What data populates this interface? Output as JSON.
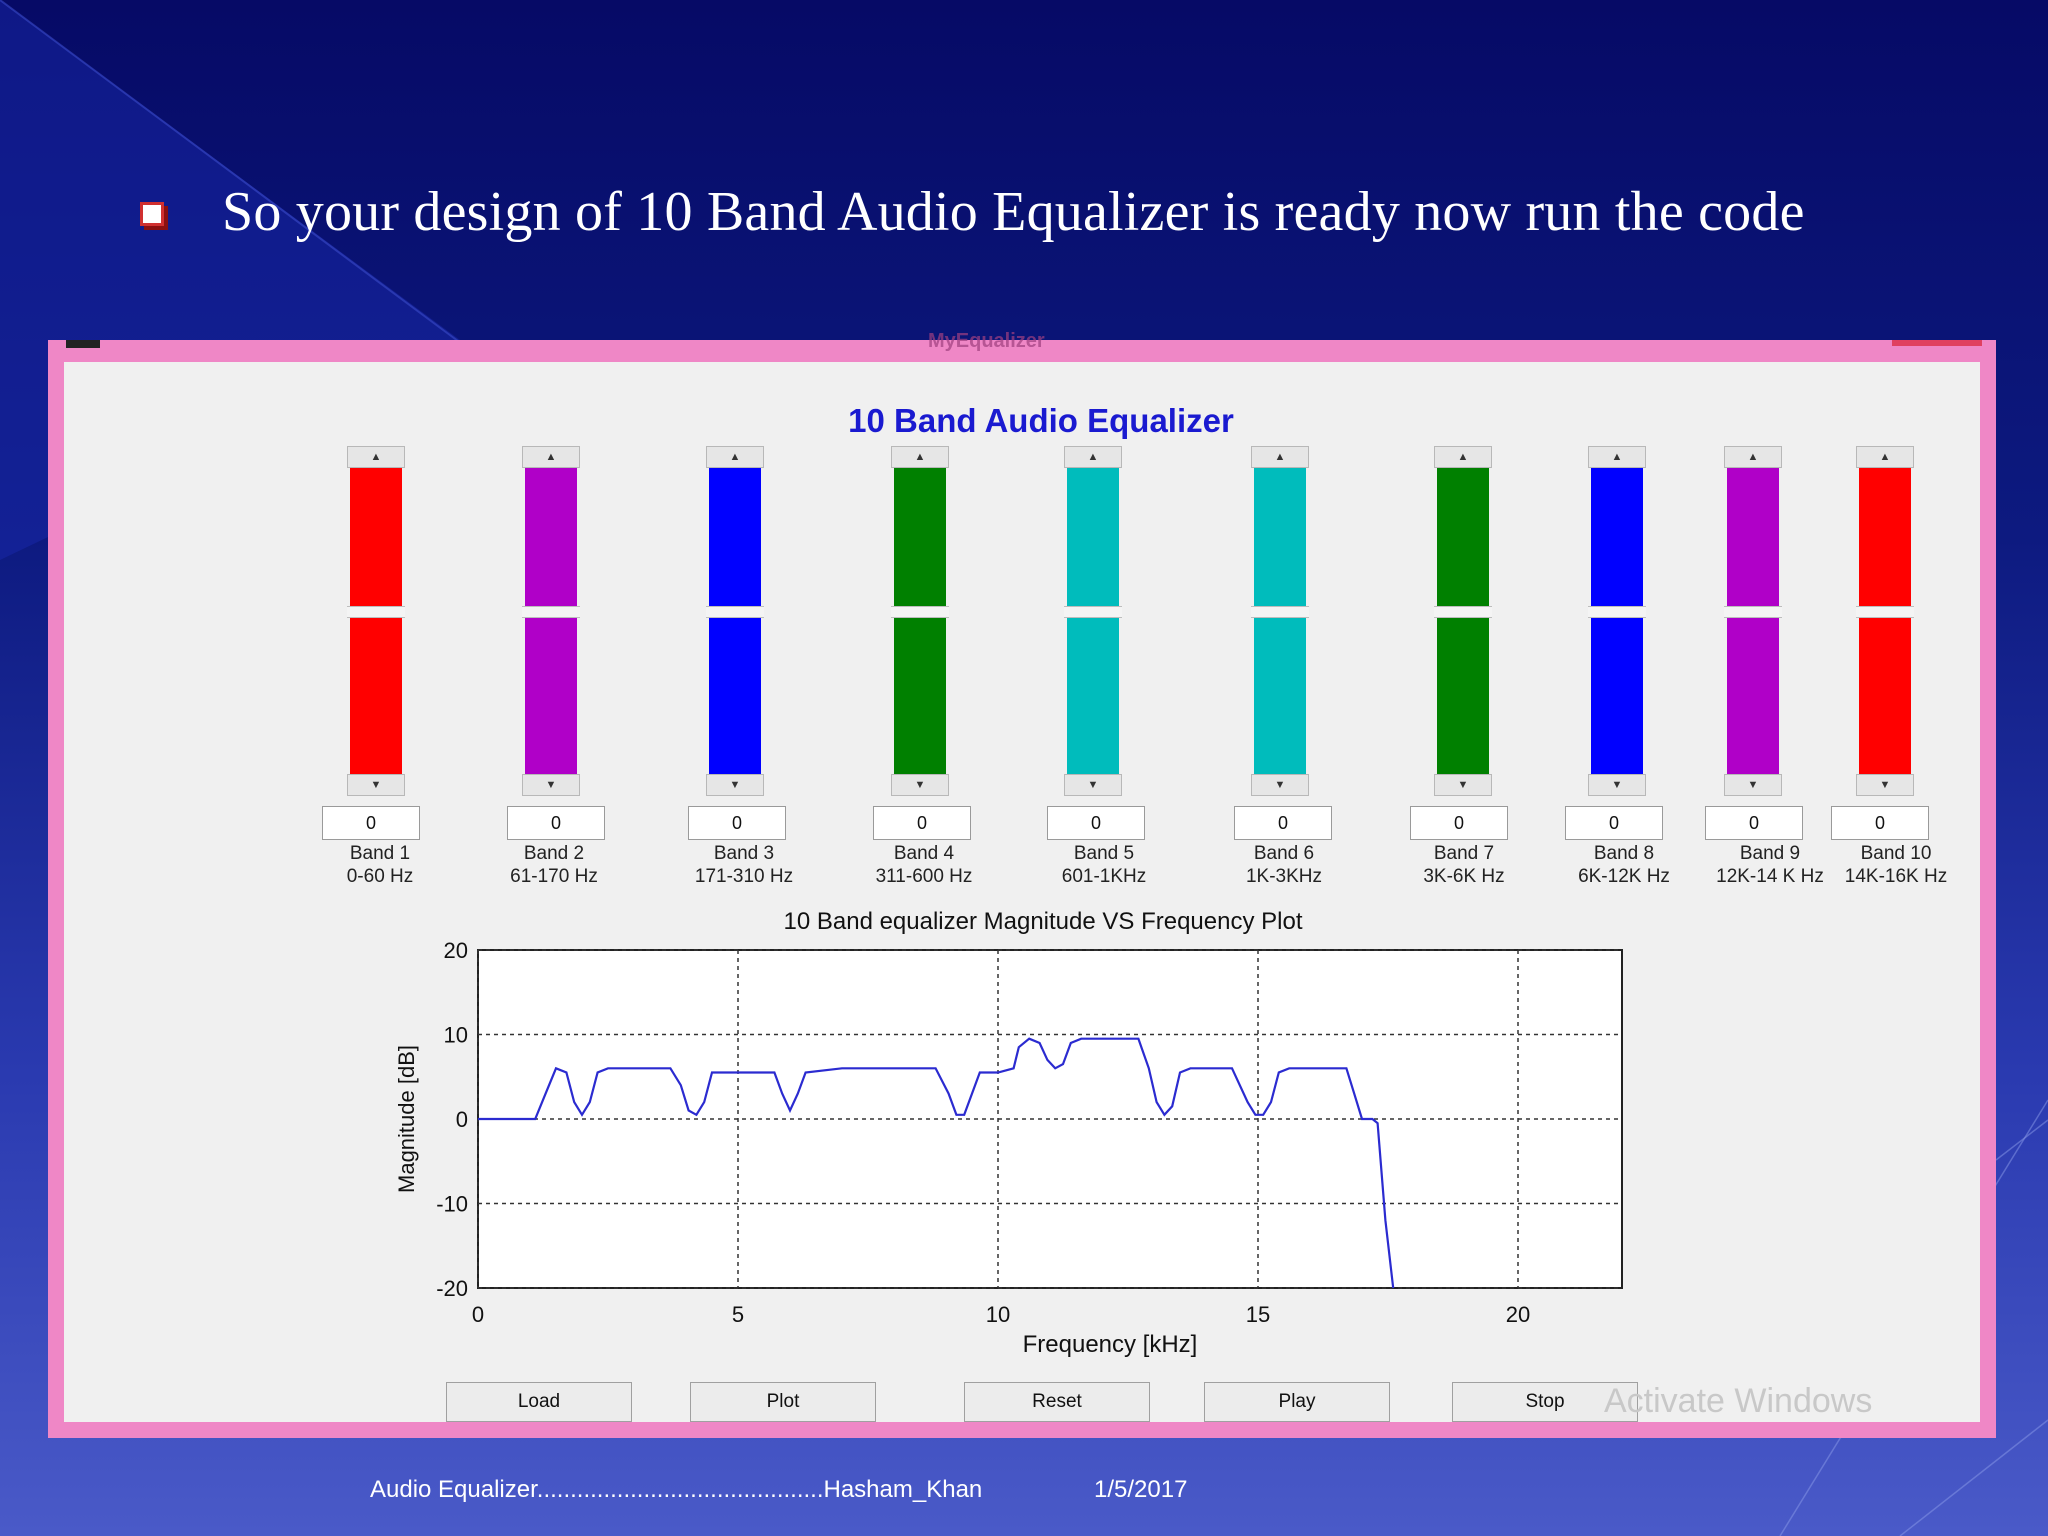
{
  "slide": {
    "headline": "So your design of 10 Band Audio Equalizer is ready now run the code",
    "footer_left": "Audio Equalizer...........................................Hasham_Khan",
    "footer_date": "1/5/2017"
  },
  "window": {
    "title": "MyEqualizer",
    "app_title": "10 Band Audio Equalizer"
  },
  "bands": [
    {
      "gain": "0",
      "name": "Band 1",
      "range": "0-60 Hz",
      "color": "#ff0000"
    },
    {
      "gain": "0",
      "name": "Band 2",
      "range": "61-170 Hz",
      "color": "#b000c8"
    },
    {
      "gain": "0",
      "name": "Band 3",
      "range": "171-310 Hz",
      "color": "#0000ff"
    },
    {
      "gain": "0",
      "name": "Band 4",
      "range": "311-600 Hz",
      "color": "#008000"
    },
    {
      "gain": "0",
      "name": "Band 5",
      "range": "601-1KHz",
      "color": "#00bcbc"
    },
    {
      "gain": "0",
      "name": "Band 6",
      "range": "1K-3KHz",
      "color": "#00bcbc"
    },
    {
      "gain": "0",
      "name": "Band 7",
      "range": "3K-6K Hz",
      "color": "#008000"
    },
    {
      "gain": "0",
      "name": "Band 8",
      "range": "6K-12K Hz",
      "color": "#0000ff"
    },
    {
      "gain": "0",
      "name": "Band 9",
      "range": "12K-14 K Hz",
      "color": "#b000c8"
    },
    {
      "gain": "0",
      "name": "Band 10",
      "range": "14K-16K Hz",
      "color": "#ff0000"
    }
  ],
  "buttons": {
    "load": "Load",
    "plot": "Plot",
    "reset": "Reset",
    "play": "Play",
    "stop": "Stop"
  },
  "watermark": "Activate Windows",
  "chart_data": {
    "type": "line",
    "title": "10 Band equalizer Magnitude VS Frequency Plot",
    "xlabel": "Frequency [kHz]",
    "ylabel": "Magnitude [dB]",
    "xlim": [
      0,
      22
    ],
    "ylim": [
      -20,
      20
    ],
    "xticks": [
      0,
      5,
      10,
      15,
      20
    ],
    "yticks": [
      20,
      10,
      0,
      -10,
      -20
    ],
    "grid": true,
    "line_color": "#2b2bd0",
    "x": [
      0,
      1.1,
      1.3,
      1.5,
      1.7,
      1.85,
      2.0,
      2.15,
      2.3,
      2.5,
      3.7,
      3.9,
      4.05,
      4.2,
      4.35,
      4.5,
      5.0,
      5.7,
      5.85,
      6.0,
      6.15,
      6.3,
      7.0,
      8.8,
      9.05,
      9.2,
      9.35,
      9.5,
      9.65,
      10.0,
      10.3,
      10.4,
      10.6,
      10.8,
      10.95,
      11.1,
      11.25,
      11.4,
      11.6,
      12.5,
      12.7,
      12.9,
      13.05,
      13.2,
      13.35,
      13.5,
      13.7,
      14.5,
      14.8,
      14.95,
      15.1,
      15.25,
      15.4,
      15.6,
      16.7,
      16.85,
      17.0,
      17.2,
      17.3,
      17.45,
      17.6
    ],
    "y": [
      0,
      0,
      3,
      6,
      5.5,
      2,
      0.5,
      2,
      5.5,
      6,
      6,
      4,
      1,
      0.5,
      2,
      5.5,
      5.5,
      5.5,
      3,
      1,
      3,
      5.5,
      6,
      6,
      3,
      0.5,
      0.5,
      3,
      5.5,
      5.5,
      6,
      8.5,
      9.5,
      9,
      7,
      6,
      6.5,
      9,
      9.5,
      9.5,
      9.5,
      6,
      2,
      0.5,
      1.5,
      5.5,
      6,
      6,
      2,
      0.5,
      0.5,
      2,
      5.5,
      6,
      6,
      3,
      0,
      0,
      -0.5,
      -12,
      -21
    ]
  }
}
